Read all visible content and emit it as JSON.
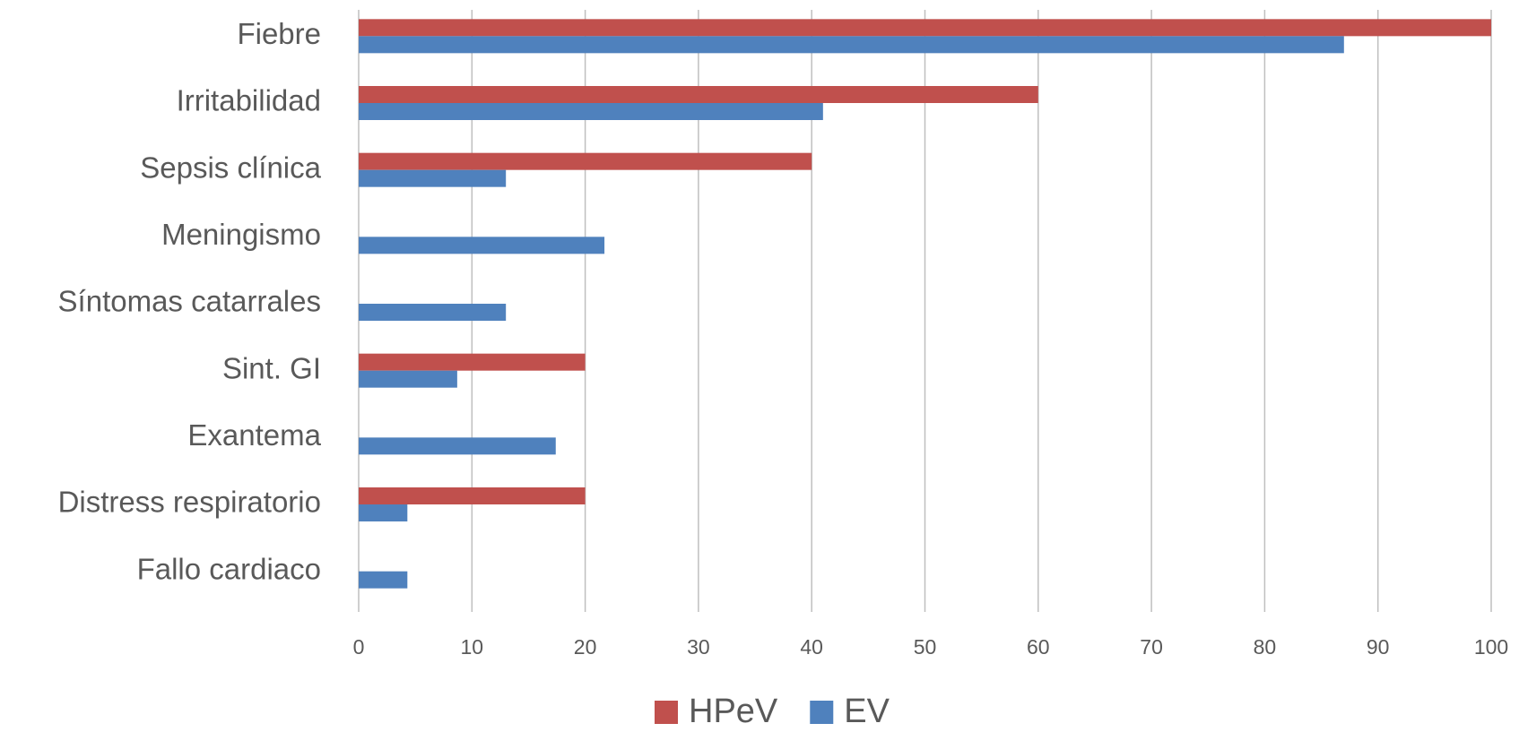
{
  "chart_data": {
    "type": "hbar",
    "categories": [
      "Fiebre",
      "Irritabilidad",
      "Sepsis clínica",
      "Meningismo",
      "Síntomas catarrales",
      "Sint. GI",
      "Exantema",
      "Distress respiratorio",
      "Fallo cardiaco"
    ],
    "series": [
      {
        "name": "HPeV",
        "color": "#c0504d",
        "values": [
          100,
          60,
          40,
          0,
          0,
          20,
          0,
          20,
          0
        ]
      },
      {
        "name": "EV",
        "color": "#4f81bd",
        "values": [
          87,
          41,
          13,
          21.7,
          13,
          8.7,
          17.4,
          4.3,
          4.3
        ]
      }
    ],
    "xlim": [
      0,
      100
    ],
    "xticks": [
      0,
      10,
      20,
      30,
      40,
      50,
      60,
      70,
      80,
      90,
      100
    ],
    "grid": true,
    "legend": "bottom"
  }
}
